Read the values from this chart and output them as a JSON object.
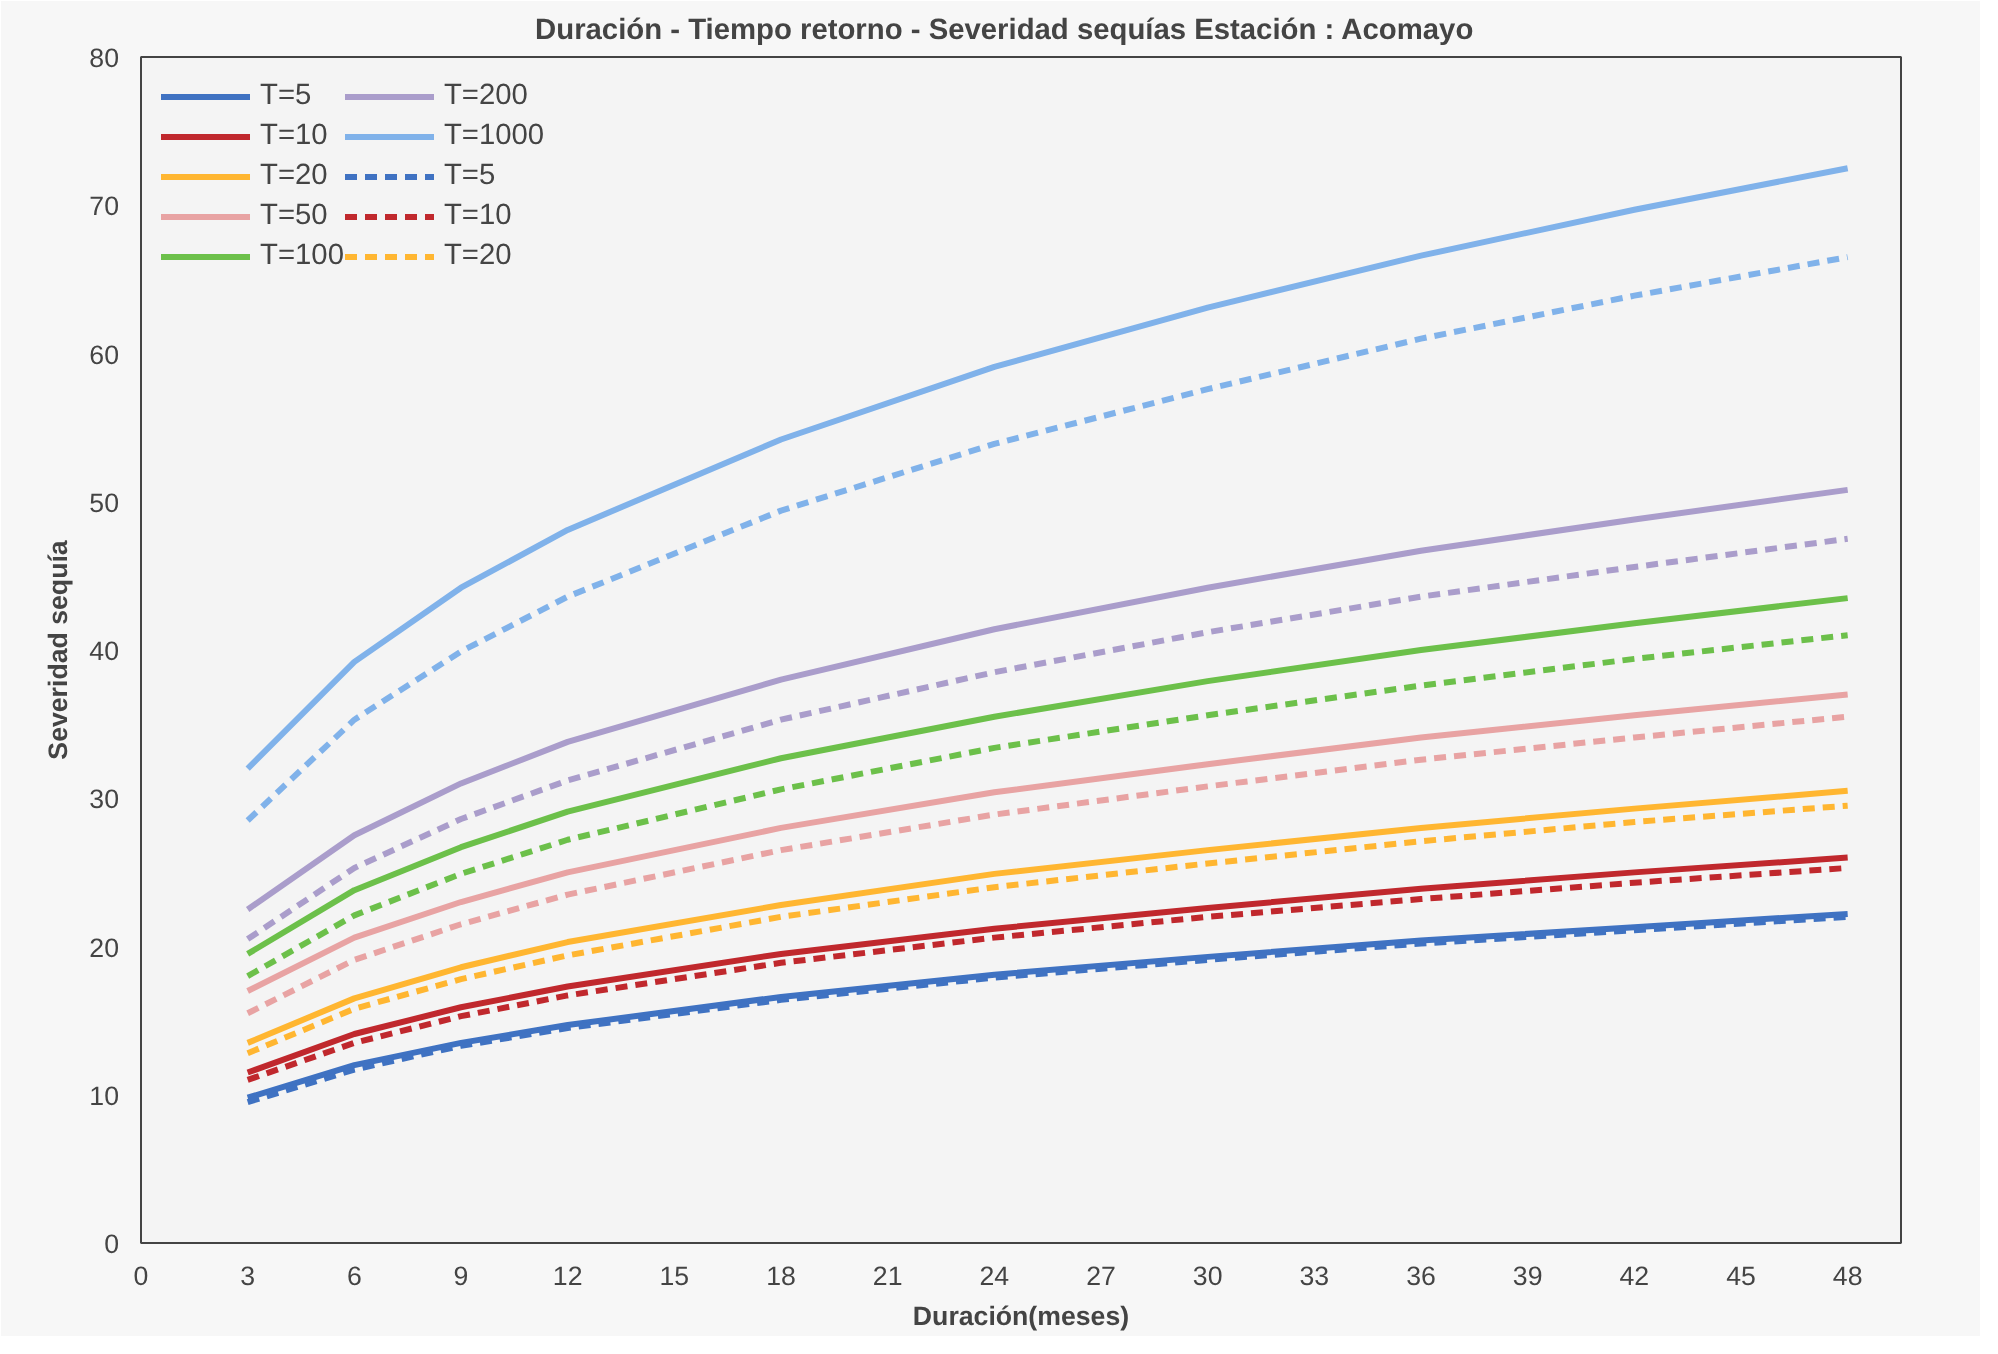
{
  "chart_data": {
    "type": "line",
    "title": "Duración - Tiempo retorno - Severidad sequías     Estación : Acomayo",
    "xlabel": "Duración(meses)",
    "ylabel": "Severidad sequía",
    "x": [
      3,
      6,
      9,
      12,
      18,
      24,
      30,
      36,
      42,
      48
    ],
    "xlim": [
      0,
      49.5
    ],
    "xticks": [
      0,
      3,
      6,
      9,
      12,
      15,
      18,
      21,
      24,
      27,
      30,
      33,
      36,
      39,
      42,
      45,
      48
    ],
    "ylim": [
      0,
      80
    ],
    "yticks": [
      0,
      10,
      20,
      30,
      40,
      50,
      60,
      70,
      80
    ],
    "grid": false,
    "legend": "top left",
    "line_style": "solid",
    "series": [
      {
        "name": "T=5",
        "color": "#3f72c2",
        "values": [
          9.8,
          12.0,
          13.5,
          14.7,
          16.6,
          18.1,
          19.3,
          20.4,
          21.3,
          22.2
        ]
      },
      {
        "name": "T=10",
        "color": "#c0282d",
        "values": [
          11.5,
          14.1,
          15.9,
          17.3,
          19.5,
          21.2,
          22.6,
          23.9,
          25.0,
          26.0
        ]
      },
      {
        "name": "T=20",
        "color": "#ffb631",
        "values": [
          13.5,
          16.5,
          18.6,
          20.3,
          22.8,
          24.9,
          26.5,
          28.0,
          29.3,
          30.5
        ]
      },
      {
        "name": "T=50",
        "color": "#e8a3a3",
        "values": [
          17.0,
          20.6,
          23.0,
          25.0,
          28.0,
          30.4,
          32.3,
          34.1,
          35.6,
          37.0
        ]
      },
      {
        "name": "T=100",
        "color": "#6cc04a",
        "values": [
          19.5,
          23.8,
          26.7,
          29.1,
          32.7,
          35.5,
          37.9,
          40.0,
          41.8,
          43.5
        ]
      },
      {
        "name": "T=200",
        "color": "#aa9dcb",
        "values": [
          22.5,
          27.5,
          31.0,
          33.8,
          38.0,
          41.4,
          44.2,
          46.7,
          48.8,
          50.8
        ]
      },
      {
        "name": "T=1000",
        "color": "#80b2ea",
        "values": [
          32.0,
          39.2,
          44.2,
          48.1,
          54.2,
          59.1,
          63.1,
          66.6,
          69.7,
          72.5
        ]
      },
      {
        "name": "T=5",
        "color": "#3f72c2",
        "line_style": "dashed",
        "values": [
          9.5,
          11.7,
          13.3,
          14.5,
          16.4,
          17.9,
          19.1,
          20.2,
          21.1,
          22.0
        ]
      },
      {
        "name": "T=10",
        "color": "#c0282d",
        "line_style": "dashed",
        "values": [
          11.0,
          13.5,
          15.3,
          16.7,
          18.9,
          20.6,
          22.0,
          23.2,
          24.3,
          25.3
        ]
      },
      {
        "name": "T=20",
        "color": "#ffb631",
        "line_style": "dashed",
        "values": [
          12.8,
          15.8,
          17.8,
          19.4,
          22.0,
          24.0,
          25.6,
          27.1,
          28.4,
          29.5
        ]
      },
      {
        "color": "#e8a3a3",
        "line_style": "dashed",
        "values": [
          15.5,
          19.1,
          21.5,
          23.5,
          26.5,
          28.9,
          30.8,
          32.6,
          34.1,
          35.5
        ]
      },
      {
        "color": "#6cc04a",
        "line_style": "dashed",
        "values": [
          18.0,
          22.1,
          24.9,
          27.2,
          30.6,
          33.4,
          35.6,
          37.6,
          39.4,
          41.0
        ]
      },
      {
        "color": "#aa9dcb",
        "line_style": "dashed",
        "values": [
          20.5,
          25.3,
          28.6,
          31.2,
          35.3,
          38.5,
          41.2,
          43.6,
          45.6,
          47.5
        ]
      },
      {
        "color": "#80b2ea",
        "line_style": "dashed",
        "values": [
          28.5,
          35.3,
          39.9,
          43.6,
          49.4,
          53.9,
          57.6,
          61.0,
          63.9,
          66.5
        ]
      }
    ]
  }
}
